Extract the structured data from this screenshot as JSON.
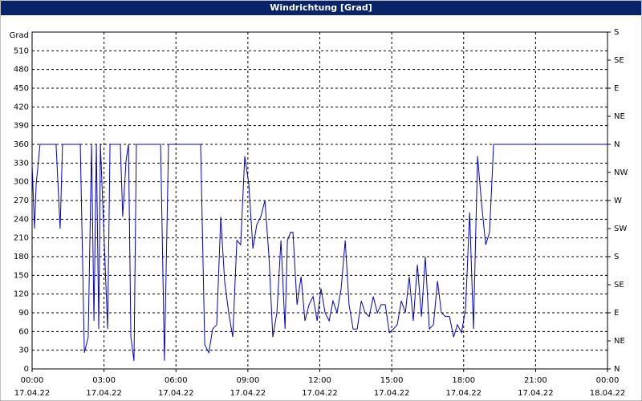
{
  "chart_data": {
    "type": "line",
    "title": "Windrichtung [Grad]",
    "y_label": "Grad",
    "color": "#0000c8",
    "grid": true,
    "xlim": [
      0,
      24
    ],
    "xticks": [
      {
        "value": 0,
        "label": "00:00",
        "date": "17.04.22"
      },
      {
        "value": 3,
        "label": "03:00",
        "date": "17.04.22"
      },
      {
        "value": 6,
        "label": "06:00",
        "date": "17.04.22"
      },
      {
        "value": 9,
        "label": "09:00",
        "date": "17.04.22"
      },
      {
        "value": 12,
        "label": "12:00",
        "date": "17.04.22"
      },
      {
        "value": 15,
        "label": "15:00",
        "date": "17.04.22"
      },
      {
        "value": 18,
        "label": "18:00",
        "date": "17.04.22"
      },
      {
        "value": 21,
        "label": "21:00",
        "date": "17.04.22"
      },
      {
        "value": 24,
        "label": "00:00",
        "date": "18.04.22"
      }
    ],
    "ylim": [
      0,
      540
    ],
    "yticks": [
      0,
      30,
      60,
      90,
      120,
      150,
      180,
      210,
      240,
      270,
      300,
      330,
      360,
      390,
      420,
      450,
      480,
      510
    ],
    "y2lim": [
      0,
      540
    ],
    "y2ticks": [
      {
        "value": 0,
        "label": "N"
      },
      {
        "value": 45,
        "label": "NE"
      },
      {
        "value": 90,
        "label": "E"
      },
      {
        "value": 135,
        "label": "SE"
      },
      {
        "value": 180,
        "label": "S"
      },
      {
        "value": 225,
        "label": "SW"
      },
      {
        "value": 270,
        "label": "W"
      },
      {
        "value": 315,
        "label": "NW"
      },
      {
        "value": 360,
        "label": "N"
      },
      {
        "value": 405,
        "label": "NE"
      },
      {
        "value": 450,
        "label": "E"
      },
      {
        "value": 495,
        "label": "SE"
      },
      {
        "value": 540,
        "label": "S"
      }
    ],
    "x": [
      0,
      0.1,
      0.17,
      0.33,
      1.0,
      1.17,
      1.27,
      2.01,
      2.18,
      2.34,
      2.48,
      2.58,
      2.68,
      2.78,
      2.85,
      3.15,
      3.25,
      3.68,
      3.78,
      3.92,
      4.02,
      4.12,
      4.25,
      4.35,
      5.36,
      5.52,
      5.69,
      7.03,
      7.2,
      7.37,
      7.53,
      7.7,
      7.87,
      8.03,
      8.2,
      8.37,
      8.54,
      8.7,
      8.87,
      9.04,
      9.21,
      9.37,
      9.54,
      9.71,
      9.88,
      10.04,
      10.21,
      10.38,
      10.55,
      10.65,
      10.78,
      10.88,
      11.05,
      11.22,
      11.38,
      11.55,
      11.72,
      11.89,
      12.05,
      12.22,
      12.39,
      12.55,
      12.72,
      12.89,
      13.06,
      13.22,
      13.39,
      13.56,
      13.73,
      13.89,
      14.06,
      14.23,
      14.4,
      14.56,
      14.73,
      14.9,
      15.07,
      15.23,
      15.4,
      15.57,
      15.73,
      15.9,
      16.07,
      16.24,
      16.4,
      16.57,
      16.74,
      16.91,
      17.07,
      17.24,
      17.41,
      17.58,
      17.74,
      17.91,
      18.08,
      18.25,
      18.41,
      18.58,
      18.75,
      18.92,
      19.08,
      19.25,
      24.0
    ],
    "values": [
      328,
      225,
      296,
      360,
      360,
      225,
      360,
      360,
      26,
      51,
      360,
      77,
      360,
      64,
      360,
      64,
      360,
      360,
      244,
      334,
      360,
      51,
      13,
      360,
      360,
      13,
      360,
      360,
      39,
      26,
      64,
      71,
      244,
      141,
      90,
      51,
      206,
      199,
      341,
      296,
      193,
      231,
      244,
      270,
      180,
      51,
      90,
      206,
      64,
      206,
      219,
      219,
      103,
      148,
      77,
      103,
      116,
      77,
      129,
      90,
      77,
      109,
      90,
      129,
      206,
      103,
      64,
      64,
      109,
      90,
      84,
      116,
      90,
      103,
      103,
      58,
      64,
      71,
      109,
      90,
      148,
      77,
      167,
      84,
      180,
      64,
      71,
      141,
      90,
      84,
      84,
      51,
      71,
      58,
      96,
      251,
      64,
      341,
      264,
      199,
      219,
      360,
      360
    ]
  }
}
